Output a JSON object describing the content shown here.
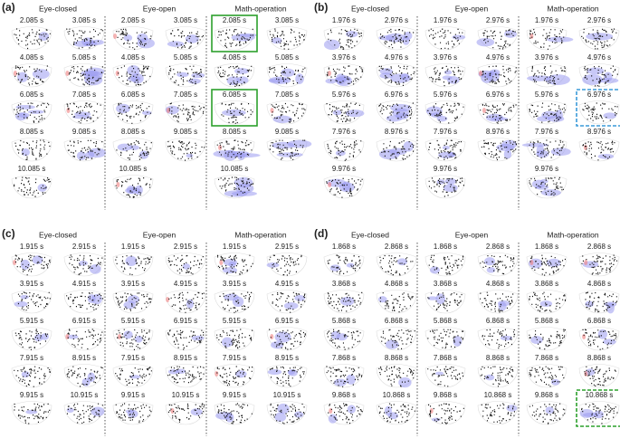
{
  "panels": [
    {
      "label": "(a)",
      "conditions": [
        "Eye-closed",
        "Eye-open",
        "Math-operation"
      ],
      "times": [
        "2.085 s",
        "3.085 s",
        "4.085 s",
        "5.085 s",
        "6.085 s",
        "7.085 s",
        "8.085 s",
        "9.085 s",
        "10.085 s"
      ]
    },
    {
      "label": "(b)",
      "conditions": [
        "Eye-closed",
        "Eye-open",
        "Math-operation"
      ],
      "times": [
        "1.976 s",
        "2.976 s",
        "3.976 s",
        "4.976 s",
        "5.976 s",
        "6.976 s",
        "7.976 s",
        "8.976 s",
        "9.976 s"
      ]
    },
    {
      "label": "(c)",
      "conditions": [
        "Eye-closed",
        "Eye-open",
        "Math-operation"
      ],
      "times": [
        "1.915 s",
        "2.915 s",
        "3.915 s",
        "4.915 s",
        "5.915 s",
        "6.915 s",
        "7.915 s",
        "8.915 s",
        "9.915 s",
        "10.915 s"
      ]
    },
    {
      "label": "(d)",
      "conditions": [
        "Eye-closed",
        "Eye-open",
        "Math-operation"
      ],
      "times": [
        "1.868 s",
        "2.868 s",
        "3.868 s",
        "4.868 s",
        "5.868 s",
        "6.868 s",
        "7.868 s",
        "8.868 s",
        "9.868 s",
        "10.868 s"
      ]
    }
  ]
}
